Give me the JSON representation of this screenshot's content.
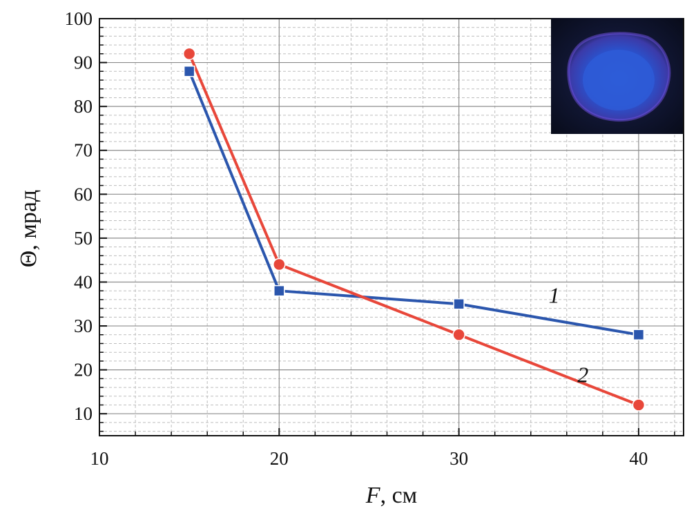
{
  "chart_data": {
    "type": "line",
    "xlabel_italic": "F",
    "xlabel_rest": ", см",
    "ylabel": "Θ, мрад",
    "xlim": [
      10,
      42.5
    ],
    "ylim": [
      5,
      100
    ],
    "x_ticks": [
      10,
      20,
      30,
      40
    ],
    "y_ticks": [
      10,
      20,
      30,
      40,
      50,
      60,
      70,
      80,
      90,
      100
    ],
    "grid": true,
    "series": [
      {
        "name": "1",
        "color": "#2b56ad",
        "marker": "square",
        "x": [
          15,
          20,
          30,
          40
        ],
        "y": [
          88,
          38,
          35,
          28
        ]
      },
      {
        "name": "2",
        "color": "#e8473a",
        "marker": "circle",
        "x": [
          15,
          20,
          30,
          40
        ],
        "y": [
          92,
          44,
          28,
          12
        ]
      }
    ],
    "inset_image": "blue-beam-spot-photo"
  }
}
